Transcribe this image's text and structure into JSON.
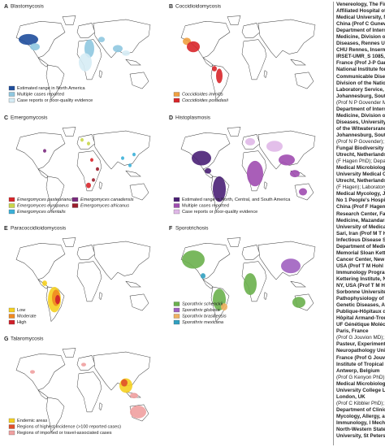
{
  "panels": [
    {
      "letter": "A",
      "title": "Blastomycosis",
      "legend": [
        {
          "label": "Estimated range in North America",
          "color": "#1f4e9c"
        },
        {
          "label": "Multiple cases reported",
          "color": "#8fc8e0"
        },
        {
          "label": "Case reports or poor-quality evidence",
          "color": "#d6ecf5"
        }
      ]
    },
    {
      "letter": "B",
      "title": "Coccidioidomycosis",
      "legend": [
        {
          "label": "Coccidioides immitis",
          "color": "#f0a040"
        },
        {
          "label": "Coccidioides posadasii",
          "color": "#d8262a"
        }
      ]
    },
    {
      "letter": "C",
      "title": "Emergomycosis",
      "legend": [
        {
          "label": "Emergomyces pasteurianus",
          "color": "#d8262a"
        },
        {
          "label": "Emergomyces europaeus",
          "color": "#c9d64a"
        },
        {
          "label": "Emergomyces orientalis",
          "color": "#3ab0d8"
        },
        {
          "label": "Emergomyces canadensis",
          "color": "#7b2a7e"
        },
        {
          "label": "Emergomyces africanus",
          "color": "#9a1c2a"
        }
      ]
    },
    {
      "letter": "D",
      "title": "Histoplasmosis",
      "legend": [
        {
          "label": "Estimated range in North, Central, and South America",
          "color": "#4a2075"
        },
        {
          "label": "Multiple cases reported",
          "color": "#a04db0"
        },
        {
          "label": "Case reports or poor-quality evidence",
          "color": "#e0b8e8"
        }
      ]
    },
    {
      "letter": "E",
      "title": "Paracoccidioidomycosis",
      "legend": [
        {
          "label": "Low",
          "color": "#f5d020"
        },
        {
          "label": "Moderate",
          "color": "#f08a20"
        },
        {
          "label": "High",
          "color": "#d0202a"
        }
      ]
    },
    {
      "letter": "F",
      "title": "Sporotrichosis",
      "legend": [
        {
          "label": "Sporothrix schenckii",
          "color": "#6ab04c"
        },
        {
          "label": "Sporothrix globosa",
          "color": "#a060c0"
        },
        {
          "label": "Sporothrix brasiliensis",
          "color": "#f0b060"
        },
        {
          "label": "Sporothrix mexicana",
          "color": "#30a0c0"
        }
      ]
    },
    {
      "letter": "G",
      "title": "Talaromycosis",
      "legend": [
        {
          "label": "Endemic areas",
          "color": "#f5d020"
        },
        {
          "label": "Regions of highest incidence (>100 reported cases)",
          "color": "#e0502a"
        },
        {
          "label": "Regions of imported or travel-associated cases",
          "color": "#f0a0a0"
        }
      ]
    }
  ],
  "side_text": [
    "Venereology, The First",
    "Affiliated Hospital of S",
    "Medical University, Na",
    "China (Prof C Gunewi M",
    "Department of Internal",
    "Medicine, Division of In",
    "Diseases, Rennes Unive",
    "CHU Rennes, Inserm,",
    "IRSET-UMR_S 1085, Re",
    "France (Prof J-P Gangne",
    "National Institute for",
    "Communicable Disease",
    "Division of the Nationa",
    "Laboratory Service,",
    "Johannesburg, South A",
    "(Prof N P Govender MD)",
    "Department of Internal",
    "Medicine, Division of In",
    "Diseases, University",
    "of the Witwatersrand,",
    "Johannesburg, South A",
    "(Prof N P Govender); W",
    "Fungal Biodiversity Inst",
    "Utrecht, Netherlands",
    "(F Hagen PhD); Depart",
    "Medical Microbiology, U",
    "University Medical Cen",
    "Utrecht, Netherlands",
    "(F Hagen); Laboratory",
    "Medical Mycology, Jiling",
    "No 1 People's Hospital",
    "China (Prof F Hagen); I",
    "Research Center, Facul",
    "Medicine, Mazandaran",
    "University of Medical S",
    "Sari, Iran (Prof M T Hed",
    "Infectious Disease Serv",
    "Department of Medicin",
    "Memorial Sloan Kettere",
    "Cancer Center, New Yo",
    "USA (Prof T M Hohl MD)",
    "Immunology Program, S",
    "Kettering Institute, Ne",
    "NY, USA (Prof T M Hohl",
    "Sorbonne Université,",
    "Pathophysiology of Pe",
    "Genetic Diseases, Assis",
    "Publique-Hôpitaux de",
    "Hôpital Armand-Trouss",
    "UF Génétique Molécul",
    "Paris, France",
    "(Prof G Jouvion MD); Ex",
    "Pasteur, Experimental",
    "Neuropathology Unit, I",
    "France (Prof G Jouvion",
    "Institute of Tropical M",
    "Antwerp, Belgium",
    "(Prof G Kenyon PhD); C",
    "Medical Microbiology, U",
    "University College Lon",
    "London, UK",
    "(Prof C Kibbler PhD);",
    "Department of Clinical",
    "Mycology, Allergy, and",
    "Immunology, I Mechn",
    "North-Western State M",
    "University, St Petersb"
  ]
}
